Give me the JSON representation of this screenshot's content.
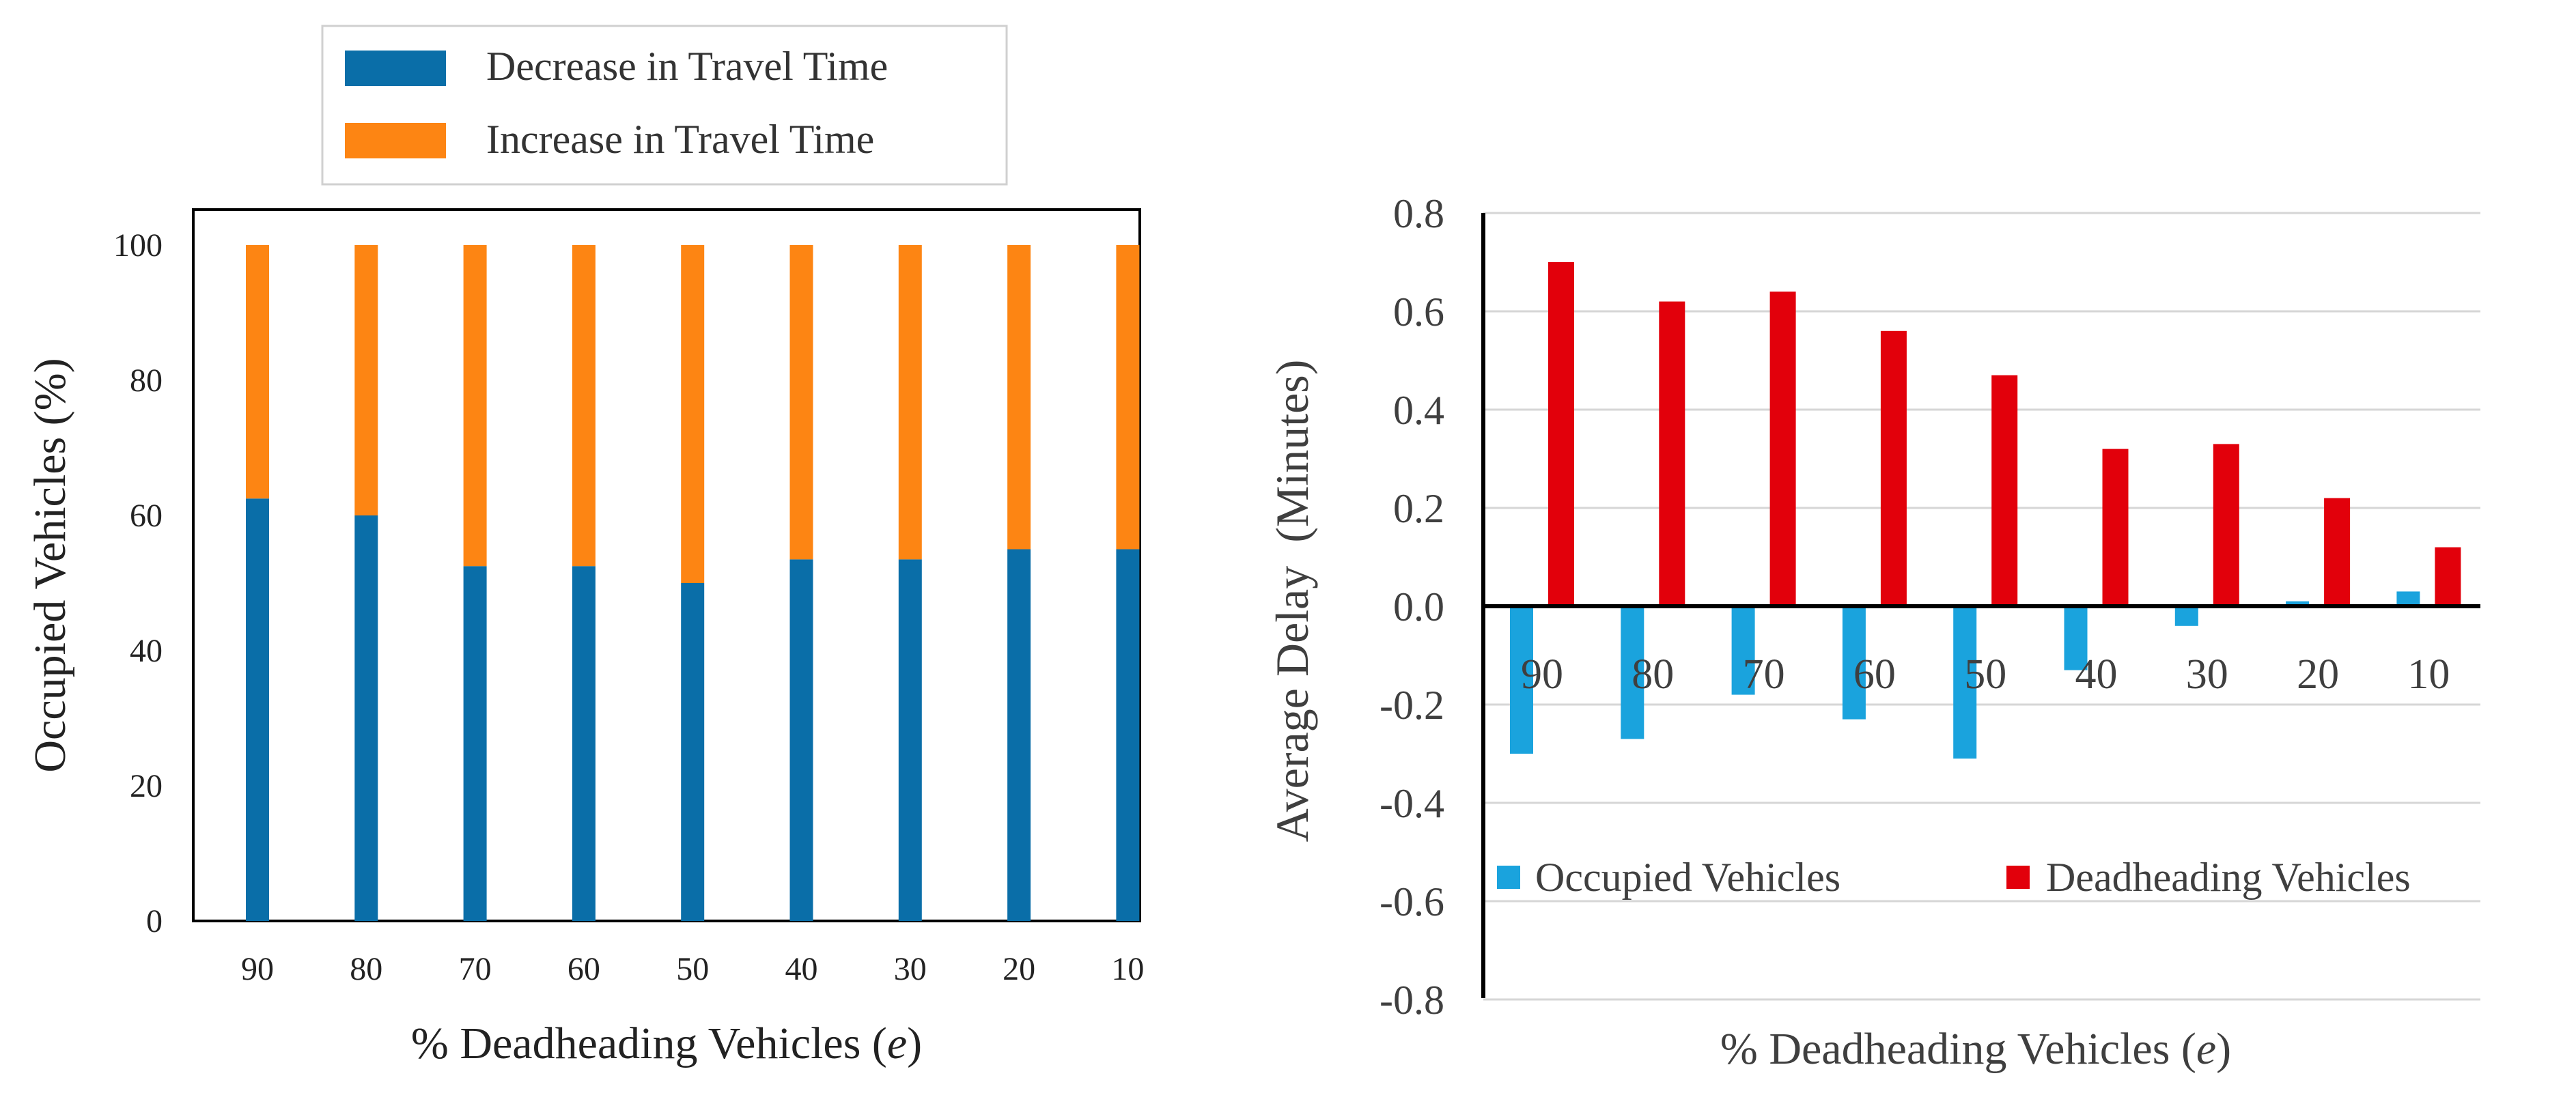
{
  "colors": {
    "decrease": "#0a6ea8",
    "increase": "#fd8513",
    "occupied": "#1aa3dd",
    "deadheading": "#e2000b",
    "grid": "#d6d6d6",
    "axis": "#000000",
    "text": "#3f3f3f"
  },
  "chart_data": [
    {
      "type": "bar",
      "stacked": true,
      "categories": [
        "90",
        "80",
        "70",
        "60",
        "50",
        "40",
        "30",
        "20",
        "10"
      ],
      "series": [
        {
          "name": "Decrease in Travel Time",
          "values": [
            62.5,
            60,
            52.5,
            52.5,
            50,
            53.5,
            53.5,
            55,
            55
          ]
        },
        {
          "name": "Increase in Travel Time",
          "values": [
            37.5,
            40,
            47.5,
            47.5,
            50,
            46.5,
            46.5,
            45,
            45
          ]
        }
      ],
      "title": "",
      "xlabel": "% Deadheading Vehicles (",
      "xlabel_var": "e",
      "xlabel_close": ")",
      "ylabel": "Occupied Vehicles (%)",
      "ylim": [
        0,
        105
      ],
      "yticks": [
        "0",
        "20",
        "40",
        "60",
        "80",
        "100"
      ],
      "grid": false,
      "legend": "top"
    },
    {
      "type": "bar",
      "categories": [
        "90",
        "80",
        "70",
        "60",
        "50",
        "40",
        "30",
        "20",
        "10"
      ],
      "series": [
        {
          "name": "Occupied Vehicles",
          "values": [
            -0.3,
            -0.27,
            -0.18,
            -0.23,
            -0.31,
            -0.13,
            -0.04,
            0.01,
            0.03
          ]
        },
        {
          "name": "Deadheading Vehicles",
          "values": [
            0.7,
            0.62,
            0.64,
            0.56,
            0.47,
            0.32,
            0.33,
            0.22,
            0.12
          ]
        }
      ],
      "title": "",
      "xlabel": "% Deadheading Vehicles (",
      "xlabel_var": "e",
      "xlabel_close": ")",
      "ylabel": "Average Delay  (Minutes)",
      "ylim": [
        -0.8,
        0.8
      ],
      "yticks": [
        "0.8",
        "0.6",
        "0.4",
        "0.2",
        "0.0",
        "-0.2",
        "-0.4",
        "-0.6",
        "-0.8"
      ],
      "grid": true,
      "legend": "center"
    }
  ]
}
